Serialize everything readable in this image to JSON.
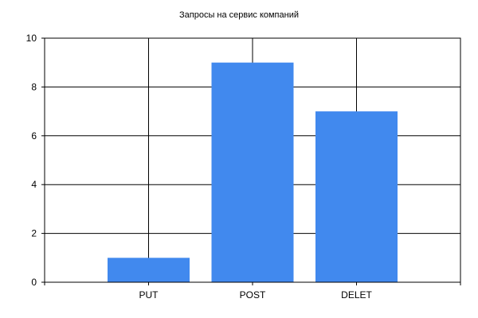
{
  "chart_data": {
    "type": "bar",
    "title": "Запросы на сервис компаний",
    "xlabel": "",
    "ylabel": "",
    "categories": [
      "PUT",
      "POST",
      "DELET"
    ],
    "values": [
      1,
      9,
      7
    ],
    "ylim": [
      0,
      10
    ],
    "yticks": [
      0,
      2,
      4,
      6,
      8,
      10
    ],
    "grid": true,
    "legend": "none",
    "bar_color": "#4189EE"
  }
}
